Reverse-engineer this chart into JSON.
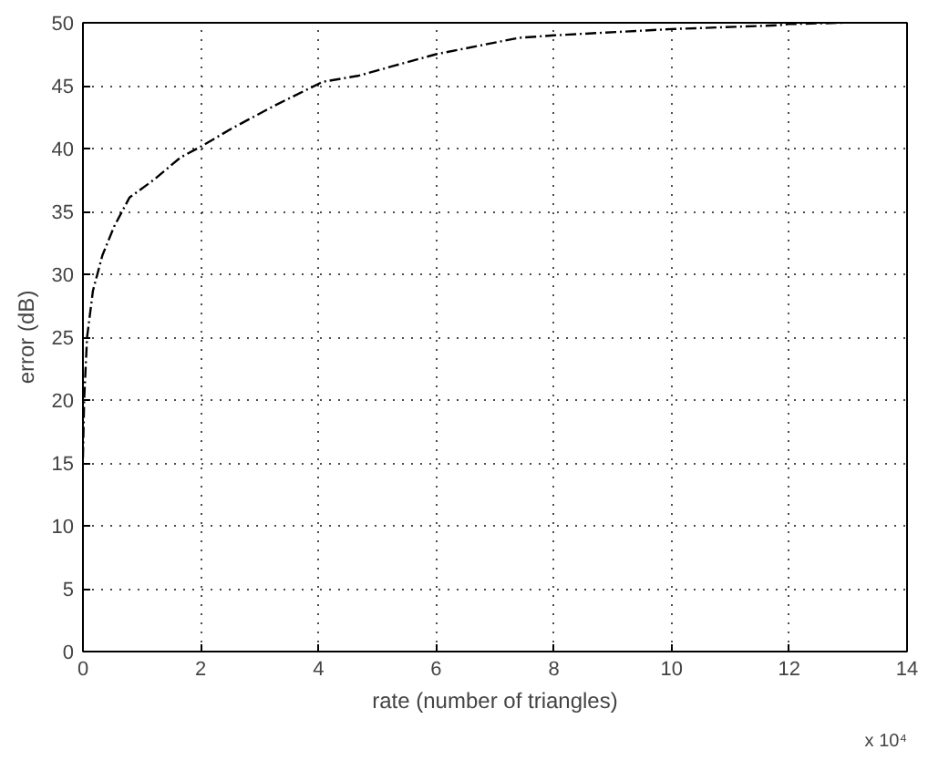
{
  "chart_data": {
    "type": "line",
    "xlabel": "rate (number of triangles)",
    "ylabel": "error (dB)",
    "annotations": [
      "x 10⁴"
    ],
    "x": [
      0,
      0.02,
      0.07,
      0.17,
      0.33,
      0.53,
      0.79,
      1.2,
      1.66,
      2.02,
      2.53,
      3.25,
      4.07,
      4.69,
      5.3,
      6,
      7.4,
      8,
      10,
      11.8,
      12,
      12.9
    ],
    "series": [
      {
        "color": "#000000",
        "values": [
          15.4,
          20,
          25,
          28.7,
          31.5,
          33.8,
          36.1,
          37.5,
          39.3,
          40.2,
          41.6,
          43.4,
          45.3,
          45.8,
          46.6,
          47.5,
          48.8,
          49,
          49.5,
          49.8,
          49.9,
          50
        ]
      }
    ],
    "xlim": [
      0,
      14
    ],
    "ylim": [
      0,
      50
    ],
    "xticks": [
      0,
      2,
      4,
      6,
      8,
      10,
      12,
      14
    ],
    "yticks": [
      0,
      5,
      10,
      15,
      20,
      25,
      30,
      35,
      40,
      45,
      50
    ],
    "grid": true,
    "marker": "none",
    "line_style": "dashed"
  }
}
